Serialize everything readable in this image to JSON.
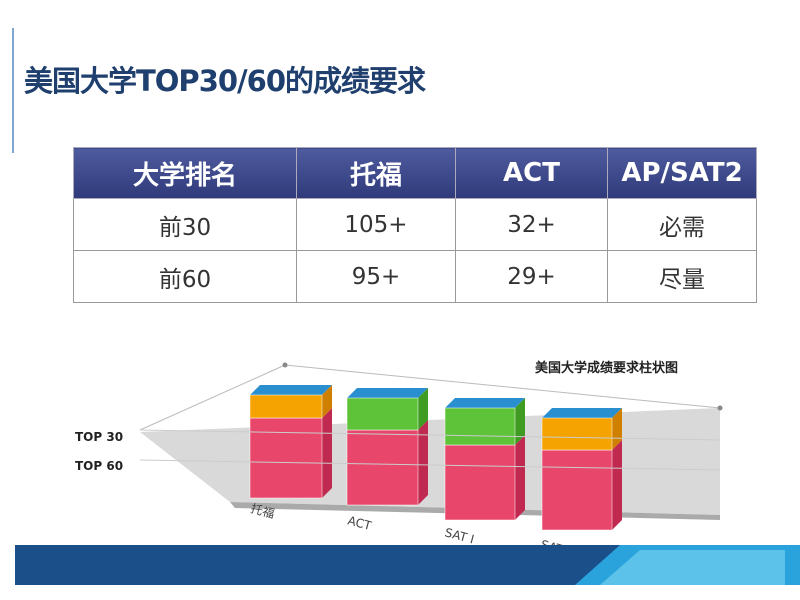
{
  "title": "美国大学TOP30/60的成绩要求",
  "table": {
    "header": [
      "大学排名",
      "托福",
      "ACT",
      "AP/SAT2"
    ],
    "rows": [
      [
        "前30",
        "105+",
        "32+",
        "必需"
      ],
      [
        "前60",
        "95+",
        "29+",
        "尽量"
      ]
    ]
  },
  "figure": {
    "title": "美国大学成绩要求柱状图",
    "row_labels": [
      "TOP 30",
      "TOP 60"
    ],
    "categories": [
      "托福",
      "ACT",
      "SAT I",
      "SAT II"
    ]
  }
}
